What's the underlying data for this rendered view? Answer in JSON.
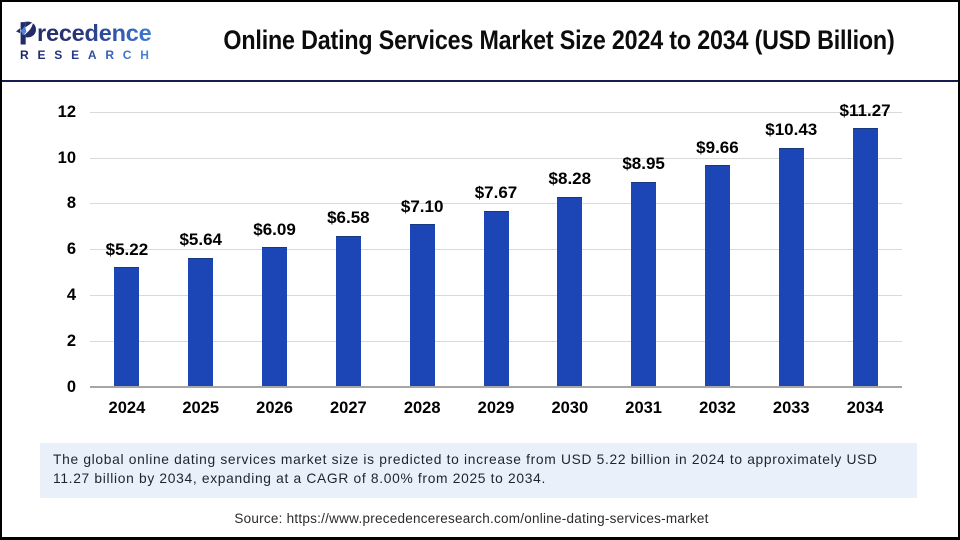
{
  "header": {
    "brand_line1": "Precedence",
    "brand_line2": "RESEARCH",
    "title": "Online Dating Services Market Size 2024 to 2034 (USD Billion)"
  },
  "chart_data": {
    "type": "bar",
    "title": "Online Dating Services Market Size 2024 to 2034 (USD Billion)",
    "categories": [
      "2024",
      "2025",
      "2026",
      "2027",
      "2028",
      "2029",
      "2030",
      "2031",
      "2032",
      "2033",
      "2034"
    ],
    "values": [
      5.22,
      5.64,
      6.09,
      6.58,
      7.1,
      7.67,
      8.28,
      8.95,
      9.66,
      10.43,
      11.27
    ],
    "value_labels": [
      "$5.22",
      "$5.64",
      "$6.09",
      "$6.58",
      "$7.10",
      "$7.67",
      "$8.28",
      "$8.95",
      "$9.66",
      "$10.43",
      "$11.27"
    ],
    "xlabel": "",
    "ylabel": "",
    "ylim": [
      0,
      12
    ],
    "yticks": [
      0,
      2,
      4,
      6,
      8,
      10,
      12
    ],
    "grid": true,
    "legend": false,
    "bar_color": "#1c45b5",
    "bar_border_color": "#16387f",
    "gridline_color": "#d9d9d9",
    "axis_line_color": "#a6a6a6"
  },
  "summary": {
    "text": "The global online dating services market size is predicted to increase from USD 5.22 billion in 2024 to approximately USD 11.27 billion by 2034, expanding at a CAGR of 8.00% from 2025 to 2034.",
    "background": "#e9f0f9"
  },
  "footer": {
    "source_text": "Source: https://www.precedenceresearch.com/online-dating-services-market"
  },
  "colors": {
    "header_divider": "#171c4e",
    "page_border": "#000000",
    "logo_gradient_start": "#1f2965",
    "logo_gradient_end": "#4286df"
  }
}
